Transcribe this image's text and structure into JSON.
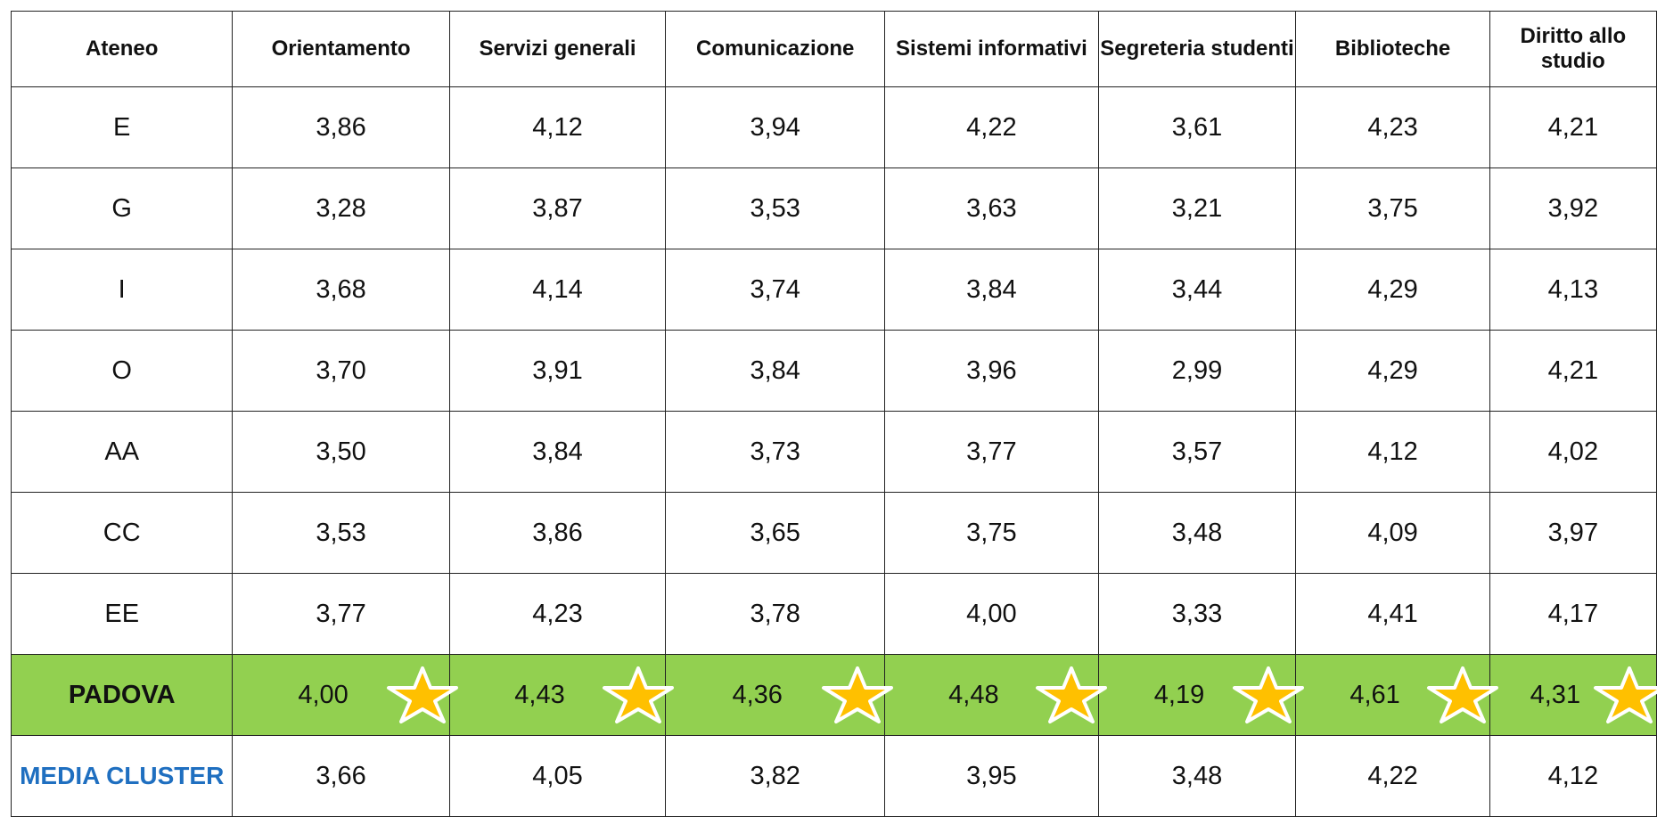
{
  "table": {
    "header": [
      "Ateneo",
      "Orientamento",
      "Servizi generali",
      "Comunicazione",
      "Sistemi informativi",
      "Segreteria studenti",
      "Biblioteche",
      "Diritto allo studio"
    ],
    "rows": [
      [
        "E",
        "3,86",
        "4,12",
        "3,94",
        "4,22",
        "3,61",
        "4,23",
        "4,21"
      ],
      [
        "G",
        "3,28",
        "3,87",
        "3,53",
        "3,63",
        "3,21",
        "3,75",
        "3,92"
      ],
      [
        "I",
        "3,68",
        "4,14",
        "3,74",
        "3,84",
        "3,44",
        "4,29",
        "4,13"
      ],
      [
        "O",
        "3,70",
        "3,91",
        "3,84",
        "3,96",
        "2,99",
        "4,29",
        "4,21"
      ],
      [
        "AA",
        "3,50",
        "3,84",
        "3,73",
        "3,77",
        "3,57",
        "4,12",
        "4,02"
      ],
      [
        "CC",
        "3,53",
        "3,86",
        "3,65",
        "3,75",
        "3,48",
        "4,09",
        "3,97"
      ],
      [
        "EE",
        "3,77",
        "4,23",
        "3,78",
        "4,00",
        "3,33",
        "4,41",
        "4,17"
      ],
      [
        "PADOVA",
        "4,00",
        "4,43",
        "4,36",
        "4,48",
        "4,19",
        "4,61",
        "4,31"
      ],
      [
        "MEDIA CLUSTER",
        "3,66",
        "4,05",
        "3,82",
        "3,95",
        "3,48",
        "4,22",
        "4,12"
      ]
    ]
  }
}
